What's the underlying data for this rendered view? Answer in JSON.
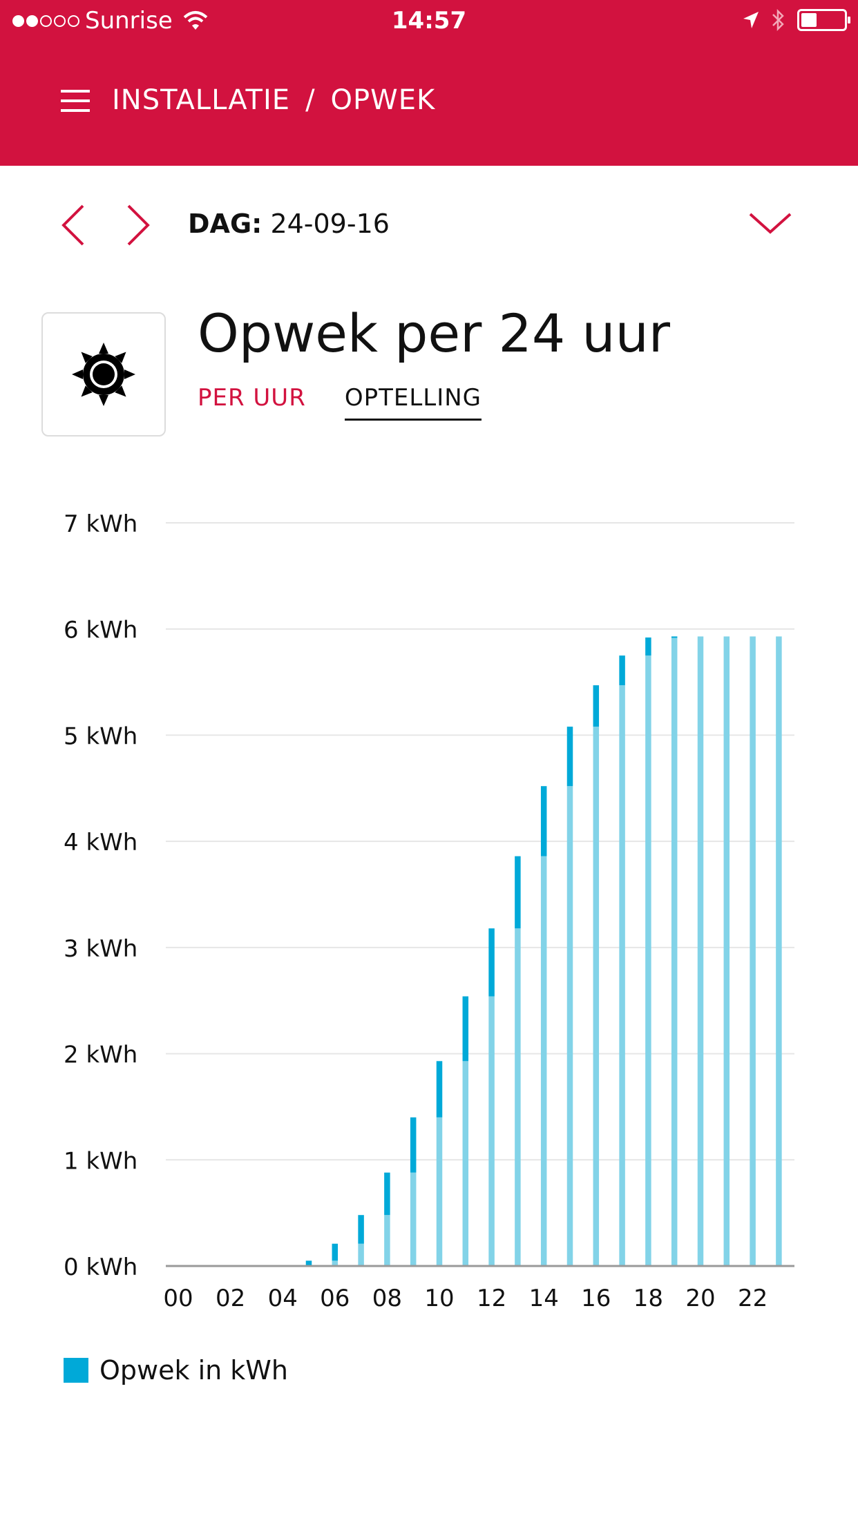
{
  "status_bar": {
    "carrier": "Sunrise",
    "time": "14:57"
  },
  "header": {
    "breadcrumb": [
      "INSTALLATIE",
      "/",
      "OPWEK"
    ],
    "menu_icon": "hamburger-menu-icon"
  },
  "date_nav": {
    "label_prefix": "DAG:",
    "date": "24-09-16"
  },
  "title": "Opwek per 24 uur",
  "tabs": [
    {
      "label": "PER UUR",
      "active": false
    },
    {
      "label": "OPTELLING",
      "active": true
    }
  ],
  "colors": {
    "brand": "#d2123f",
    "bar_base": "#82d3e8",
    "bar_increment": "#00a9d8"
  },
  "chart_data": {
    "type": "bar",
    "stacked": true,
    "ylim": [
      0,
      7
    ],
    "y_ticks": [
      "0 kWh",
      "1 kWh",
      "2 kWh",
      "3 kWh",
      "4 kWh",
      "5 kWh",
      "6 kWh",
      "7 kWh"
    ],
    "x_tick_labels": [
      "00",
      "02",
      "04",
      "06",
      "08",
      "10",
      "12",
      "14",
      "16",
      "18",
      "20",
      "22"
    ],
    "categories": [
      "00",
      "01",
      "02",
      "03",
      "04",
      "05",
      "06",
      "07",
      "08",
      "09",
      "10",
      "11",
      "12",
      "13",
      "14",
      "15",
      "16",
      "17",
      "18",
      "19",
      "20",
      "21",
      "22",
      "23"
    ],
    "series": [
      {
        "values": [
          0,
          0,
          0,
          0,
          0,
          0,
          0.05,
          0.21,
          0.48,
          0.88,
          1.4,
          1.93,
          2.54,
          3.18,
          3.86,
          4.52,
          5.08,
          5.47,
          5.75,
          5.92,
          5.93,
          5.93,
          5.93,
          5.93
        ]
      },
      {
        "values": [
          0,
          0,
          0,
          0,
          0,
          0.05,
          0.16,
          0.27,
          0.4,
          0.52,
          0.53,
          0.61,
          0.64,
          0.68,
          0.66,
          0.56,
          0.39,
          0.28,
          0.17,
          0.01,
          0,
          0,
          0,
          0
        ]
      }
    ],
    "legend": [
      "Opwek in kWh"
    ],
    "legend_position": "bottom-left",
    "grid": true
  }
}
